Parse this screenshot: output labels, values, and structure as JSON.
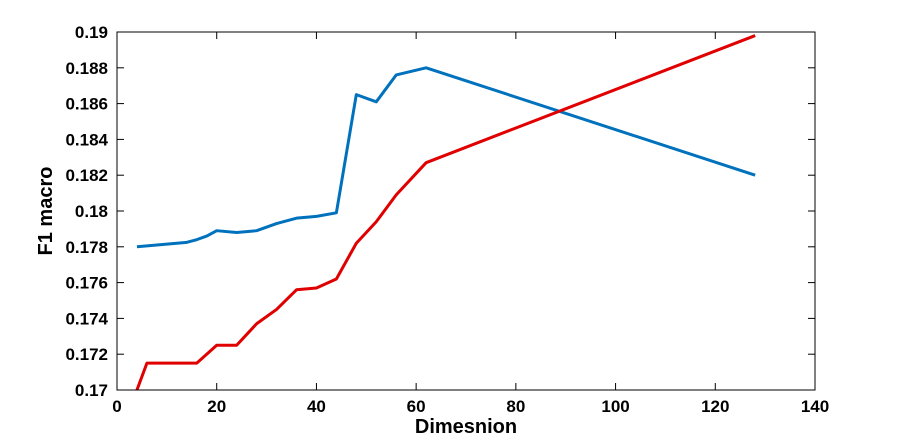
{
  "chart_data": {
    "type": "line",
    "title": "",
    "xlabel": "Dimesnion",
    "ylabel": "F1 macro",
    "xlim": [
      0,
      140
    ],
    "ylim": [
      0.17,
      0.19
    ],
    "xticks": [
      0,
      20,
      40,
      60,
      80,
      100,
      120,
      140
    ],
    "xtick_labels": [
      "0",
      "20",
      "40",
      "60",
      "80",
      "100",
      "120",
      "140"
    ],
    "yticks": [
      0.17,
      0.172,
      0.174,
      0.176,
      0.178,
      0.18,
      0.182,
      0.184,
      0.186,
      0.188,
      0.19
    ],
    "ytick_labels": [
      "0.17",
      "0.172",
      "0.174",
      "0.176",
      "0.178",
      "0.18",
      "0.182",
      "0.184",
      "0.186",
      "0.188",
      "0.19"
    ],
    "grid": false,
    "legend": "none",
    "series": [
      {
        "color": "#0072bd",
        "points": [
          [
            4,
            0.178
          ],
          [
            8,
            0.1781
          ],
          [
            12,
            0.1782
          ],
          [
            14,
            0.17825
          ],
          [
            16,
            0.1784
          ],
          [
            18,
            0.1786
          ],
          [
            20,
            0.1789
          ],
          [
            24,
            0.1788
          ],
          [
            28,
            0.1789
          ],
          [
            32,
            0.1793
          ],
          [
            36,
            0.1796
          ],
          [
            40,
            0.1797
          ],
          [
            44,
            0.1799
          ],
          [
            48,
            0.1865
          ],
          [
            52,
            0.1861
          ],
          [
            56,
            0.1876
          ],
          [
            62,
            0.188
          ],
          [
            128,
            0.182
          ]
        ]
      },
      {
        "color": "#e00000",
        "points": [
          [
            4,
            0.17
          ],
          [
            6,
            0.1715
          ],
          [
            8,
            0.1715
          ],
          [
            10,
            0.1715
          ],
          [
            16,
            0.1715
          ],
          [
            20,
            0.1725
          ],
          [
            24,
            0.1725
          ],
          [
            28,
            0.1737
          ],
          [
            32,
            0.1745
          ],
          [
            36,
            0.1756
          ],
          [
            40,
            0.1757
          ],
          [
            44,
            0.1762
          ],
          [
            48,
            0.1782
          ],
          [
            52,
            0.1794
          ],
          [
            56,
            0.1809
          ],
          [
            62,
            0.1827
          ],
          [
            128,
            0.1898
          ]
        ]
      }
    ]
  }
}
